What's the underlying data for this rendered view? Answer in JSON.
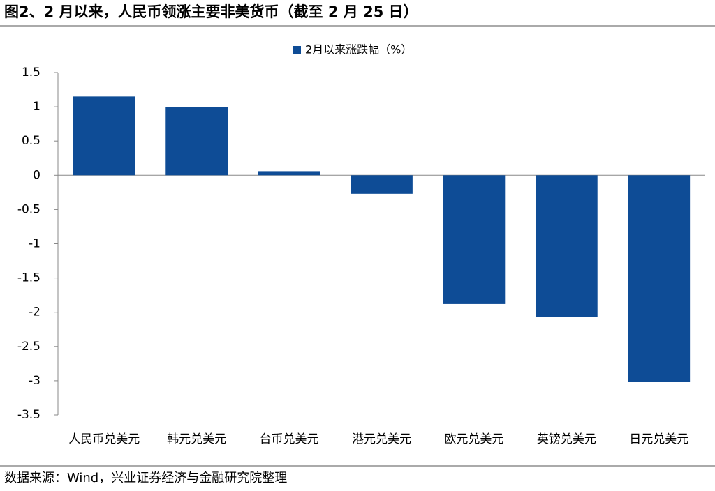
{
  "chart_data": {
    "type": "bar",
    "title": "图2、2 月以来，人民币领涨主要非美货币（截至 2 月 25 日）",
    "categories": [
      "人民币兑美元",
      "韩元兑美元",
      "台币兑美元",
      "港元兑美元",
      "欧元兑美元",
      "英镑兑美元",
      "日元兑美元"
    ],
    "series": [
      {
        "name": "2月以来涨跌幅（%）",
        "color": "#0e4c96",
        "values": [
          1.15,
          1.0,
          0.06,
          -0.27,
          -1.88,
          -2.07,
          -3.02
        ]
      }
    ],
    "ylim": [
      -3.5,
      1.5
    ],
    "yticks": [
      -3.5,
      -3,
      -2.5,
      -2,
      -1.5,
      -1,
      -0.5,
      0,
      0.5,
      1,
      1.5
    ],
    "grid": false,
    "legend": "top",
    "source": "数据来源：Wind，兴业证券经济与金融研究院整理"
  }
}
